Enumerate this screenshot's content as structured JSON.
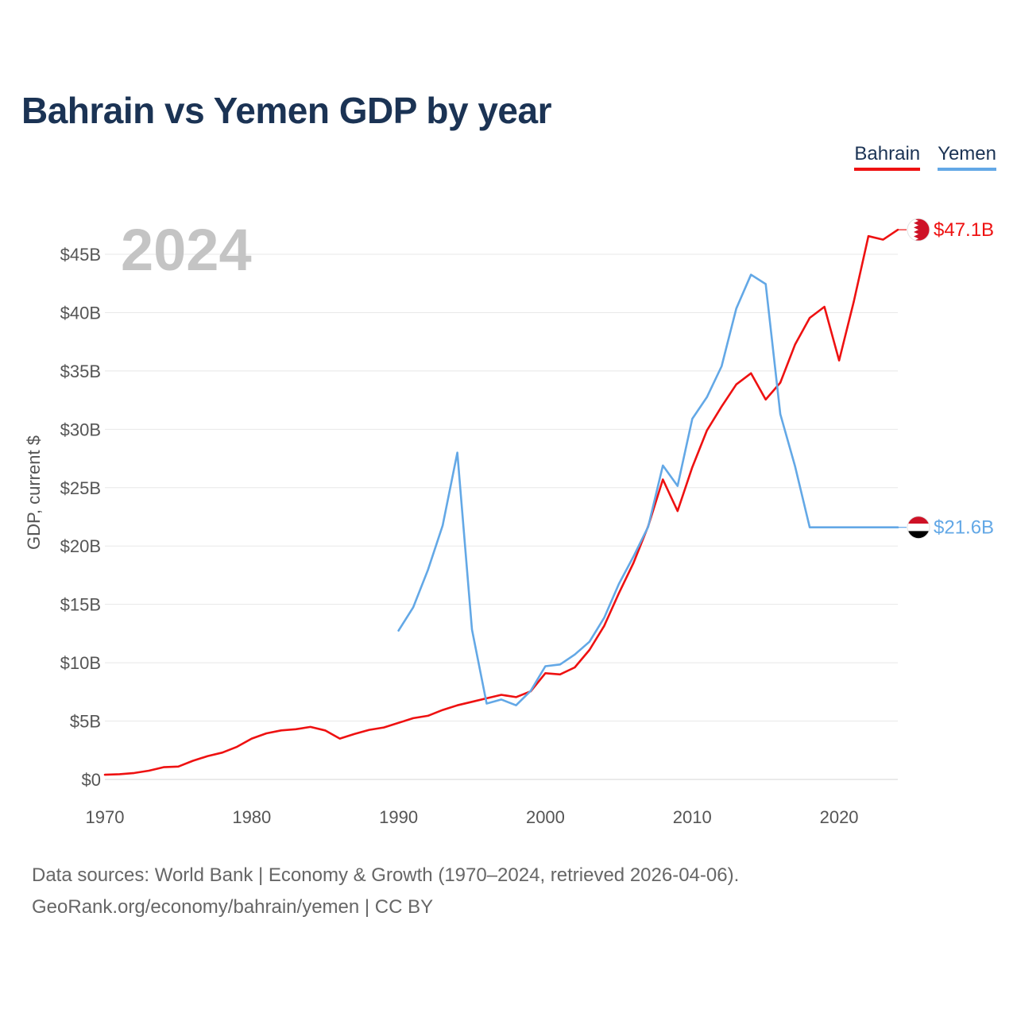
{
  "title": "Bahrain vs Yemen GDP by year",
  "legend": [
    {
      "name": "Bahrain",
      "color": "#ee1111"
    },
    {
      "name": "Yemen",
      "color": "#63a8e6"
    }
  ],
  "footer": {
    "line1": "Data sources: World Bank | Economy & Growth (1970–2024, retrieved 2026-04-06).",
    "line2": "GeoRank.org/economy/bahrain/yemen | CC BY"
  },
  "chart_data": {
    "type": "line",
    "title": "Bahrain vs Yemen GDP by year",
    "year_label": "2024",
    "ylabel": "GDP, current $",
    "xlabel": "",
    "xlim": [
      1970,
      2024
    ],
    "ylim": [
      0,
      45
    ],
    "y_ticks": [
      0,
      5,
      10,
      15,
      20,
      25,
      30,
      35,
      40,
      45
    ],
    "y_tick_labels": [
      "$0",
      "$5B",
      "$10B",
      "$15B",
      "$20B",
      "$25B",
      "$30B",
      "$35B",
      "$40B",
      "$45B"
    ],
    "x_ticks": [
      1970,
      1980,
      1990,
      2000,
      2010,
      2020
    ],
    "x_tick_labels": [
      "1970",
      "1980",
      "1990",
      "2000",
      "2010",
      "2020"
    ],
    "grid": true,
    "series": [
      {
        "name": "Bahrain",
        "color": "#ee1111",
        "end_label": "$47.1B",
        "flag": "bahrain-flag",
        "x": [
          1970,
          1971,
          1972,
          1973,
          1974,
          1975,
          1976,
          1977,
          1978,
          1979,
          1980,
          1981,
          1982,
          1983,
          1984,
          1985,
          1986,
          1987,
          1988,
          1989,
          1990,
          1991,
          1992,
          1993,
          1994,
          1995,
          1996,
          1997,
          1998,
          1999,
          2000,
          2001,
          2002,
          2003,
          2004,
          2005,
          2006,
          2007,
          2008,
          2009,
          2010,
          2011,
          2012,
          2013,
          2014,
          2015,
          2016,
          2017,
          2018,
          2019,
          2020,
          2021,
          2022,
          2023,
          2024
        ],
        "values": [
          0.4,
          0.45,
          0.55,
          0.75,
          1.05,
          1.1,
          1.6,
          2.0,
          2.3,
          2.8,
          3.5,
          3.95,
          4.2,
          4.3,
          4.5,
          4.2,
          3.5,
          3.9,
          4.25,
          4.45,
          4.85,
          5.25,
          5.45,
          5.95,
          6.35,
          6.65,
          6.95,
          7.25,
          7.05,
          7.55,
          9.1,
          9.0,
          9.6,
          11.1,
          13.15,
          15.95,
          18.55,
          21.7,
          25.7,
          23.0,
          26.75,
          29.9,
          31.95,
          33.85,
          34.8,
          32.55,
          34.0,
          37.25,
          39.55,
          40.5,
          35.9,
          40.95,
          46.55,
          46.25,
          47.1
        ]
      },
      {
        "name": "Yemen",
        "color": "#63a8e6",
        "end_label": "$21.6B",
        "flag": "yemen-flag",
        "x": [
          1990,
          1991,
          1992,
          1993,
          1994,
          1995,
          1996,
          1997,
          1998,
          1999,
          2000,
          2001,
          2002,
          2003,
          2004,
          2005,
          2006,
          2007,
          2008,
          2009,
          2010,
          2011,
          2012,
          2013,
          2014,
          2015,
          2016,
          2017,
          2018,
          2019,
          2020,
          2021,
          2022,
          2023,
          2024
        ],
        "values": [
          12.75,
          14.75,
          17.95,
          21.75,
          28.0,
          12.85,
          6.5,
          6.85,
          6.35,
          7.6,
          9.7,
          9.85,
          10.7,
          11.8,
          13.85,
          16.75,
          19.1,
          21.65,
          26.9,
          25.15,
          30.9,
          32.75,
          35.4,
          40.35,
          43.25,
          42.45,
          31.3,
          26.85,
          21.6,
          21.6,
          21.6,
          21.6,
          21.6,
          21.6,
          21.6
        ]
      }
    ]
  }
}
